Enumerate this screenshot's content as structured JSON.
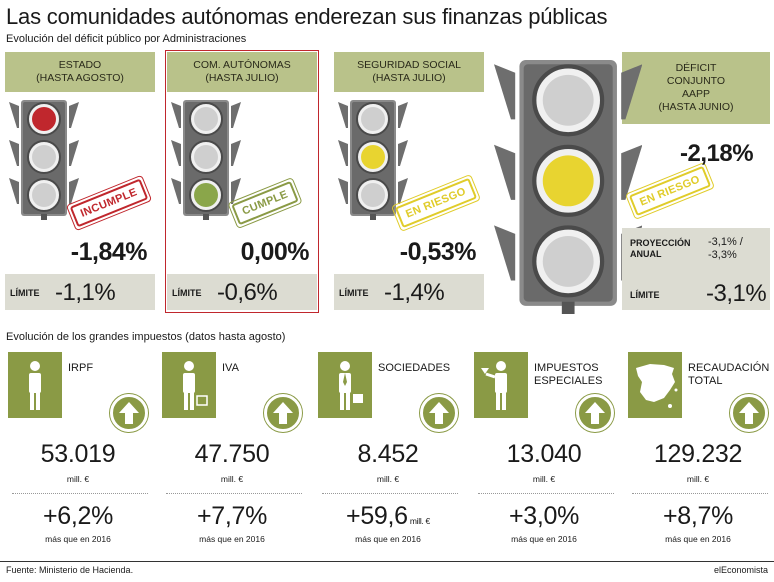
{
  "title": "Las comunidades autónomas enderezan sus finanzas públicas",
  "subtitle": "Evolución del déficit público por Administraciones",
  "section2": "Evolución de los grandes impuestos (datos hasta agosto)",
  "footer_source": "Fuente: Ministerio de Hacienda.",
  "footer_brand": "elEconomista",
  "colors": {
    "olive": "#8a9a45",
    "header": "#b9c28a",
    "red": "#c0272d",
    "yellow": "#e8d430",
    "green": "#8aa64a"
  },
  "administraciones": [
    {
      "header": "ESTADO\n(HASTA AGOSTO)",
      "value": "-1,84%",
      "limit_label": "LÍMITE",
      "limit": "-1,1%",
      "stamp": "INCUMPLE",
      "light": "red"
    },
    {
      "header": "COM. AUTÓNOMAS\n(HASTA JULIO)",
      "value": "0,00%",
      "limit_label": "LÍMITE",
      "limit": "-0,6%",
      "stamp": "CUMPLE",
      "light": "green"
    },
    {
      "header": "SEGURIDAD SOCIAL\n(HASTA JULIO)",
      "value": "-0,53%",
      "limit_label": "LÍMITE",
      "limit": "-1,4%",
      "stamp": "EN RIESGO",
      "light": "yellow"
    }
  ],
  "conjunto": {
    "header": "DÉFICIT\nCONJUNTO\nAAPP\n(HASTA JUNIO)",
    "value": "-2,18%",
    "stamp": "EN RIESGO",
    "proj_label": "PROYECCIÓN\nANUAL",
    "proj_value": "-3,1% /\n-3,3%",
    "limit_label": "LÍMITE",
    "limit": "-3,1%"
  },
  "impuestos": [
    {
      "name": "IRPF",
      "value": "53.019",
      "unit": "mill. €",
      "pct": "+6,2%",
      "more": "más que en 2016",
      "icon": "person-icon"
    },
    {
      "name": "IVA",
      "value": "47.750",
      "unit": "mill. €",
      "pct": "+7,7%",
      "more": "más que en 2016",
      "icon": "shopper-icon"
    },
    {
      "name": "SOCIEDADES",
      "value": "8.452",
      "unit": "mill. €",
      "pct": "+59,6",
      "pct_unit": "mill. €",
      "more": "más que en 2016",
      "icon": "businessman-icon"
    },
    {
      "name": "IMPUESTOS\nESPECIALES",
      "value": "13.040",
      "unit": "mill. €",
      "pct": "+3,0%",
      "more": "más que en 2016",
      "icon": "drinker-icon"
    },
    {
      "name": "RECAUDACIÓN\nTOTAL",
      "value": "129.232",
      "unit": "mill. €",
      "pct": "+8,7%",
      "more": "más que en 2016",
      "icon": "spain-map-icon"
    }
  ]
}
